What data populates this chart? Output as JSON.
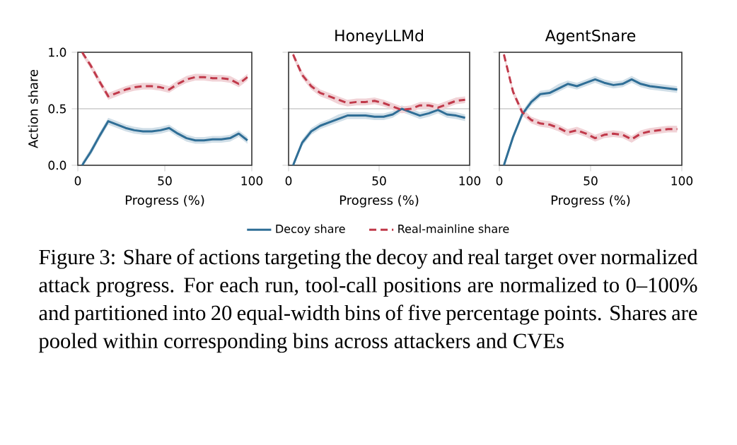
{
  "chart_data": [
    {
      "type": "line",
      "xlabel": "Progress (%)",
      "ylabel": "Action share",
      "xlim": [
        0,
        100
      ],
      "xticks": [
        0,
        50,
        100
      ],
      "ylim": [
        0,
        1
      ],
      "yticks": [
        {
          "value": 0,
          "label": "0.0"
        },
        0.5,
        {
          "value": 1,
          "label": "1.0"
        }
      ],
      "grid": "y",
      "x": [
        2.5,
        7.5,
        12.5,
        17.5,
        22.5,
        27.5,
        32.5,
        37.5,
        42.5,
        47.5,
        52.5,
        57.5,
        62.5,
        67.5,
        72.5,
        77.5,
        82.5,
        87.5,
        92.5,
        97.5
      ],
      "series": [
        {
          "color": "#2f6e96",
          "line_style": "solid",
          "values": [
            0.0,
            0.12,
            0.26,
            0.39,
            0.36,
            0.33,
            0.31,
            0.3,
            0.3,
            0.31,
            0.33,
            0.28,
            0.24,
            0.22,
            0.22,
            0.23,
            0.23,
            0.24,
            0.28,
            0.22
          ],
          "lower": [
            0.0,
            0.09,
            0.23,
            0.36,
            0.33,
            0.3,
            0.28,
            0.27,
            0.27,
            0.28,
            0.3,
            0.25,
            0.21,
            0.19,
            0.19,
            0.2,
            0.2,
            0.21,
            0.25,
            0.19
          ],
          "upper": [
            0.03,
            0.15,
            0.29,
            0.42,
            0.39,
            0.36,
            0.34,
            0.33,
            0.33,
            0.34,
            0.36,
            0.31,
            0.27,
            0.25,
            0.25,
            0.26,
            0.26,
            0.27,
            0.31,
            0.25
          ]
        },
        {
          "color": "#c0394a",
          "line_style": "dashed",
          "values": [
            1.0,
            0.88,
            0.74,
            0.61,
            0.64,
            0.67,
            0.69,
            0.7,
            0.7,
            0.69,
            0.67,
            0.72,
            0.76,
            0.78,
            0.78,
            0.77,
            0.77,
            0.76,
            0.72,
            0.78
          ],
          "lower": [
            0.97,
            0.85,
            0.71,
            0.58,
            0.61,
            0.64,
            0.66,
            0.67,
            0.67,
            0.66,
            0.64,
            0.69,
            0.73,
            0.75,
            0.75,
            0.74,
            0.74,
            0.73,
            0.69,
            0.75
          ],
          "upper": [
            1.0,
            0.91,
            0.77,
            0.64,
            0.67,
            0.7,
            0.72,
            0.73,
            0.73,
            0.72,
            0.7,
            0.75,
            0.79,
            0.81,
            0.81,
            0.8,
            0.8,
            0.79,
            0.75,
            0.81
          ]
        }
      ]
    },
    {
      "type": "line",
      "title": "HoneyLLMd",
      "xlabel": "Progress (%)",
      "xlim": [
        0,
        100
      ],
      "xticks": [
        0,
        50,
        100
      ],
      "ylim": [
        0,
        1
      ],
      "yticks": [
        0,
        0.5,
        1
      ],
      "grid": "y",
      "tick_labels": "x",
      "legend": "bottom",
      "annotations": [
        "Figure 3: Share of actions targeting the decoy and real target over normalized attack progress. For each run, tool-call positions are normalized to 0–100% and partitioned into 20 equal-width bins of five percentage points. Shares are pooled within corresponding bins across attackers and CVEs"
      ],
      "x": [
        2.5,
        7.5,
        12.5,
        17.5,
        22.5,
        27.5,
        32.5,
        37.5,
        42.5,
        47.5,
        52.5,
        57.5,
        62.5,
        67.5,
        72.5,
        77.5,
        82.5,
        87.5,
        92.5,
        97.5
      ],
      "series": [
        {
          "name": "Decoy share",
          "color": "#2f6e96",
          "line_style": "solid",
          "values": [
            0.0,
            0.2,
            0.3,
            0.35,
            0.38,
            0.41,
            0.44,
            0.44,
            0.44,
            0.43,
            0.43,
            0.45,
            0.5,
            0.47,
            0.44,
            0.46,
            0.49,
            0.45,
            0.44,
            0.42
          ],
          "lower": [
            0.0,
            0.17,
            0.27,
            0.32,
            0.35,
            0.38,
            0.41,
            0.41,
            0.41,
            0.4,
            0.4,
            0.42,
            0.47,
            0.44,
            0.41,
            0.43,
            0.46,
            0.42,
            0.41,
            0.39
          ],
          "upper": [
            0.03,
            0.23,
            0.33,
            0.38,
            0.41,
            0.45,
            0.47,
            0.47,
            0.47,
            0.46,
            0.46,
            0.48,
            0.53,
            0.5,
            0.47,
            0.49,
            0.52,
            0.48,
            0.47,
            0.45
          ]
        },
        {
          "name": "Real-mainline share",
          "color": "#c0394a",
          "line_style": "dashed",
          "values": [
            0.98,
            0.8,
            0.7,
            0.64,
            0.61,
            0.58,
            0.55,
            0.56,
            0.56,
            0.57,
            0.55,
            0.52,
            0.49,
            0.5,
            0.53,
            0.53,
            0.51,
            0.54,
            0.57,
            0.58
          ],
          "lower": [
            0.95,
            0.77,
            0.67,
            0.61,
            0.58,
            0.54,
            0.52,
            0.53,
            0.53,
            0.54,
            0.52,
            0.49,
            0.46,
            0.47,
            0.5,
            0.5,
            0.48,
            0.51,
            0.54,
            0.55
          ],
          "upper": [
            1.0,
            0.83,
            0.73,
            0.67,
            0.64,
            0.61,
            0.58,
            0.59,
            0.59,
            0.6,
            0.58,
            0.55,
            0.52,
            0.53,
            0.56,
            0.56,
            0.54,
            0.57,
            0.6,
            0.61
          ]
        }
      ]
    },
    {
      "type": "line",
      "title": "AgentSnare",
      "xlabel": "Progress (%)",
      "xlim": [
        0,
        100
      ],
      "xticks": [
        0,
        50,
        100
      ],
      "ylim": [
        0,
        1
      ],
      "yticks": [
        0,
        0.5,
        1
      ],
      "grid": "y",
      "tick_labels": "x",
      "x": [
        2.5,
        7.5,
        12.5,
        17.5,
        22.5,
        27.5,
        32.5,
        37.5,
        42.5,
        47.5,
        52.5,
        57.5,
        62.5,
        67.5,
        72.5,
        77.5,
        82.5,
        87.5,
        92.5,
        97.5
      ],
      "series": [
        {
          "color": "#2f6e96",
          "line_style": "solid",
          "values": [
            0.0,
            0.25,
            0.45,
            0.56,
            0.63,
            0.64,
            0.68,
            0.72,
            0.7,
            0.73,
            0.76,
            0.73,
            0.71,
            0.72,
            0.76,
            0.72,
            0.7,
            0.69,
            0.68,
            0.67
          ],
          "lower": [
            0.0,
            0.22,
            0.42,
            0.53,
            0.6,
            0.61,
            0.65,
            0.69,
            0.67,
            0.7,
            0.73,
            0.7,
            0.68,
            0.69,
            0.73,
            0.69,
            0.67,
            0.66,
            0.65,
            0.64
          ],
          "upper": [
            0.03,
            0.28,
            0.48,
            0.59,
            0.66,
            0.67,
            0.72,
            0.75,
            0.73,
            0.76,
            0.79,
            0.76,
            0.74,
            0.75,
            0.79,
            0.75,
            0.73,
            0.72,
            0.71,
            0.7
          ]
        },
        {
          "color": "#c0394a",
          "line_style": "dashed",
          "values": [
            0.98,
            0.65,
            0.47,
            0.4,
            0.37,
            0.36,
            0.33,
            0.29,
            0.31,
            0.28,
            0.24,
            0.27,
            0.28,
            0.27,
            0.23,
            0.28,
            0.3,
            0.31,
            0.32,
            0.32
          ],
          "lower": [
            0.95,
            0.62,
            0.44,
            0.37,
            0.34,
            0.33,
            0.3,
            0.26,
            0.28,
            0.25,
            0.21,
            0.24,
            0.25,
            0.24,
            0.2,
            0.25,
            0.27,
            0.28,
            0.29,
            0.29
          ],
          "upper": [
            1.0,
            0.68,
            0.5,
            0.43,
            0.4,
            0.39,
            0.36,
            0.32,
            0.34,
            0.31,
            0.27,
            0.3,
            0.31,
            0.3,
            0.26,
            0.31,
            0.33,
            0.34,
            0.35,
            0.35
          ]
        }
      ]
    }
  ]
}
